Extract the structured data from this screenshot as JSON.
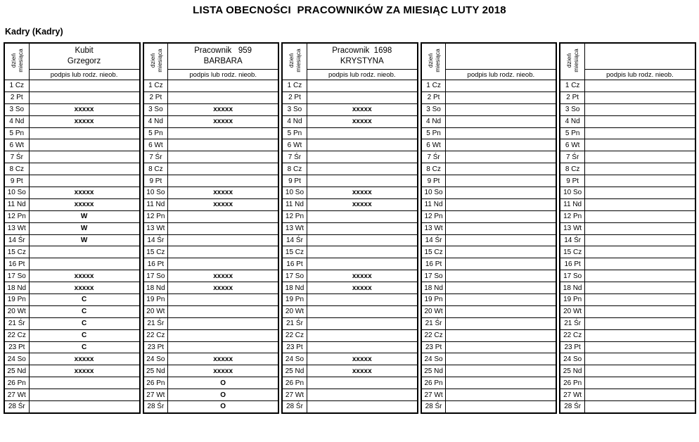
{
  "title": "LISTA OBECNOŚCI  PRACOWNIKÓW ZA MIESIĄC LUTY 2018",
  "department": "Kadry (Kadry)",
  "day_header": {
    "line1": "dzień",
    "line2": "miesiąca"
  },
  "signature_header": "podpis lub rodz. nieob.",
  "days": [
    "1 Cz",
    "2 Pt",
    "3 So",
    "4 Nd",
    "5 Pn",
    "6 Wt",
    "7 Śr",
    "8 Cz",
    "9 Pt",
    "10 So",
    "11 Nd",
    "12 Pn",
    "13 Wt",
    "14 Śr",
    "15 Cz",
    "16 Pt",
    "17 So",
    "18 Nd",
    "19 Pn",
    "20 Wt",
    "21 Śr",
    "22 Cz",
    "23 Pt",
    "24 So",
    "25 Nd",
    "26 Pn",
    "27 Wt",
    "28 Śr"
  ],
  "absence_marks": {
    "weekend": "xxxxx",
    "w": "W",
    "c": "C",
    "o": "O"
  },
  "employees": [
    {
      "name_line1": "Kubit",
      "name_line2": "Grzegorz",
      "values": [
        "",
        "",
        "xxxxx",
        "xxxxx",
        "",
        "",
        "",
        "",
        "",
        "xxxxx",
        "xxxxx",
        "W",
        "W",
        "W",
        "",
        "",
        "xxxxx",
        "xxxxx",
        "C",
        "C",
        "C",
        "C",
        "C",
        "xxxxx",
        "xxxxx",
        "",
        "",
        ""
      ]
    },
    {
      "name_line1": "Pracownik   959",
      "name_line2": "BARBARA",
      "values": [
        "",
        "",
        "xxxxx",
        "xxxxx",
        "",
        "",
        "",
        "",
        "",
        "xxxxx",
        "xxxxx",
        "",
        "",
        "",
        "",
        "",
        "xxxxx",
        "xxxxx",
        "",
        "",
        "",
        "",
        "",
        "xxxxx",
        "xxxxx",
        "O",
        "O",
        "O"
      ]
    },
    {
      "name_line1": "Pracownik  1698",
      "name_line2": "KRYSTYNA",
      "values": [
        "",
        "",
        "xxxxx",
        "xxxxx",
        "",
        "",
        "",
        "",
        "",
        "xxxxx",
        "xxxxx",
        "",
        "",
        "",
        "",
        "",
        "xxxxx",
        "xxxxx",
        "",
        "",
        "",
        "",
        "",
        "xxxxx",
        "xxxxx",
        "",
        "",
        ""
      ]
    },
    {
      "name_line1": "",
      "name_line2": "",
      "values": [
        "",
        "",
        "",
        "",
        "",
        "",
        "",
        "",
        "",
        "",
        "",
        "",
        "",
        "",
        "",
        "",
        "",
        "",
        "",
        "",
        "",
        "",
        "",
        "",
        "",
        "",
        "",
        ""
      ]
    },
    {
      "name_line1": "",
      "name_line2": "",
      "values": [
        "",
        "",
        "",
        "",
        "",
        "",
        "",
        "",
        "",
        "",
        "",
        "",
        "",
        "",
        "",
        "",
        "",
        "",
        "",
        "",
        "",
        "",
        "",
        "",
        "",
        "",
        "",
        ""
      ]
    }
  ]
}
